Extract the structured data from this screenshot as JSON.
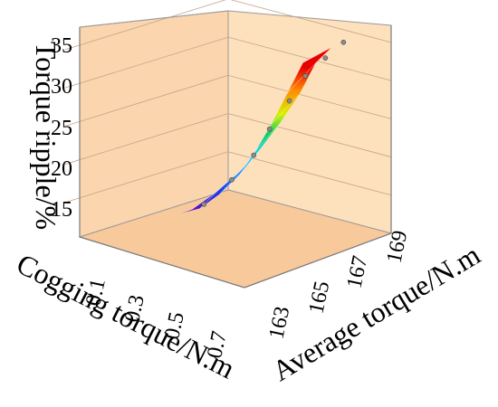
{
  "chart_data": {
    "type": "surface-scatter-3d",
    "title": "",
    "xlabel": "Cogging torque/N.m",
    "ylabel": "Average torque/N.m",
    "zlabel": "Torque ripple/%",
    "x_ticks": [
      "0.1",
      "0.3",
      "0.5",
      "0.7"
    ],
    "y_ticks": [
      "163",
      "165",
      "167",
      "169"
    ],
    "z_ticks": [
      "15",
      "20",
      "25",
      "30",
      "35"
    ],
    "xlim": [
      0.0,
      0.85
    ],
    "ylim": [
      162.0,
      170.0
    ],
    "zlim": [
      10,
      37
    ],
    "colormap": [
      "#6a00b0",
      "#0050ff",
      "#00d2ff",
      "#10d060",
      "#d8f000",
      "#ff8c00",
      "#e80000"
    ],
    "surface_profile": [
      {
        "x": 0.4,
        "y_min": 163.4,
        "y_max": 164.0,
        "z_min": 11,
        "z_max": 12
      },
      {
        "x": 0.36,
        "y_min": 164.0,
        "y_max": 164.8,
        "z_min": 11.8,
        "z_max": 14.5
      },
      {
        "x": 0.32,
        "y_min": 164.6,
        "y_max": 165.6,
        "z_min": 13.8,
        "z_max": 17.5
      },
      {
        "x": 0.28,
        "y_min": 165.2,
        "y_max": 166.2,
        "z_min": 16.5,
        "z_max": 20.5
      },
      {
        "x": 0.24,
        "y_min": 165.6,
        "y_max": 166.8,
        "z_min": 19.5,
        "z_max": 24
      },
      {
        "x": 0.2,
        "y_min": 166.0,
        "y_max": 167.4,
        "z_min": 23,
        "z_max": 28
      },
      {
        "x": 0.16,
        "y_min": 166.4,
        "y_max": 167.8,
        "z_min": 27,
        "z_max": 32
      },
      {
        "x": 0.12,
        "y_min": 166.8,
        "y_max": 168.2,
        "z_min": 31,
        "z_max": 34
      }
    ],
    "samples": [
      {
        "x": 0.36,
        "y": 164.2,
        "z": 12.5
      },
      {
        "x": 0.3,
        "y": 165.0,
        "z": 15.8
      },
      {
        "x": 0.26,
        "y": 165.7,
        "z": 19.2
      },
      {
        "x": 0.22,
        "y": 166.1,
        "z": 22.6
      },
      {
        "x": 0.18,
        "y": 166.7,
        "z": 26.4
      },
      {
        "x": 0.15,
        "y": 167.2,
        "z": 29.8
      },
      {
        "x": 0.12,
        "y": 167.9,
        "z": 32.4
      },
      {
        "x": 0.1,
        "y": 168.6,
        "z": 34.8
      }
    ]
  }
}
